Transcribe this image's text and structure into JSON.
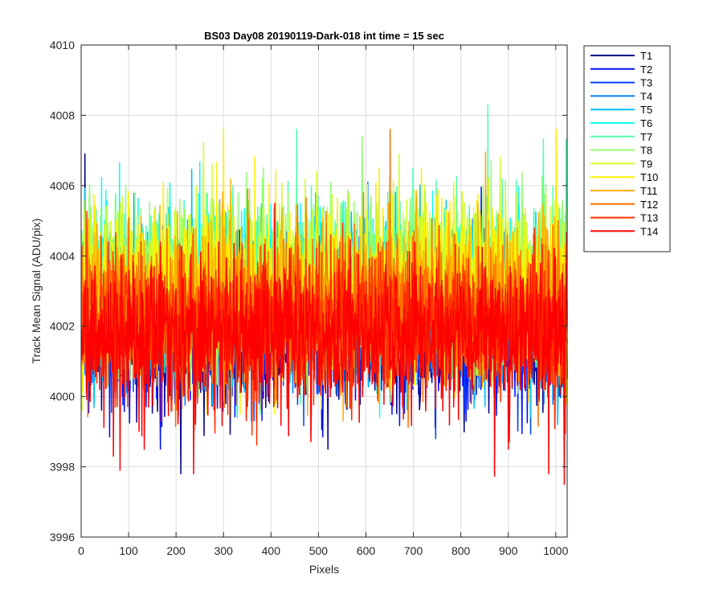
{
  "chart_data": {
    "type": "line",
    "title": "BS03 Day08 20190119-Dark-018 int time = 15 sec",
    "xlabel": "Pixels",
    "ylabel": "Track Mean Signal (ADU/pix)",
    "xlim": [
      0,
      1024
    ],
    "ylim": [
      3996,
      4010
    ],
    "xticks": [
      0,
      100,
      200,
      300,
      400,
      500,
      600,
      700,
      800,
      900,
      1000
    ],
    "yticks": [
      3996,
      3998,
      4000,
      4002,
      4004,
      4006,
      4008,
      4010
    ],
    "grid": true,
    "legend_position": "outside-top-right",
    "pixels_per_track": 1024,
    "noise_seed": 20190119,
    "series": [
      {
        "name": "T1",
        "color": "#00008F",
        "mean": 4001.7,
        "spread": 1.0,
        "min": 3997.8,
        "max": 4007.0
      },
      {
        "name": "T2",
        "color": "#0010FF",
        "mean": 4001.9,
        "spread": 1.0,
        "min": 3998.5,
        "max": 4007.0
      },
      {
        "name": "T3",
        "color": "#0040FF",
        "mean": 4002.1,
        "spread": 1.0,
        "min": 3998.8,
        "max": 4007.0
      },
      {
        "name": "T4",
        "color": "#0080FF",
        "mean": 4002.4,
        "spread": 1.05,
        "min": 3999.0,
        "max": 4007.2
      },
      {
        "name": "T5",
        "color": "#00BFFF",
        "mean": 4002.7,
        "spread": 1.1,
        "min": 3999.2,
        "max": 4007.3
      },
      {
        "name": "T6",
        "color": "#10FFEF",
        "mean": 4003.0,
        "spread": 1.15,
        "min": 3999.4,
        "max": 4007.3
      },
      {
        "name": "T7",
        "color": "#50FFAF",
        "mean": 4003.2,
        "spread": 1.2,
        "min": 3999.5,
        "max": 4008.3
      },
      {
        "name": "T8",
        "color": "#8FFF70",
        "mean": 4003.3,
        "spread": 1.2,
        "min": 3999.6,
        "max": 4007.4
      },
      {
        "name": "T9",
        "color": "#CFFF30",
        "mean": 4003.2,
        "spread": 1.2,
        "min": 3999.6,
        "max": 4007.4
      },
      {
        "name": "T10",
        "color": "#FFEF00",
        "mean": 4003.0,
        "spread": 1.2,
        "min": 3999.5,
        "max": 4007.6
      },
      {
        "name": "T11",
        "color": "#FFAF00",
        "mean": 4002.6,
        "spread": 1.15,
        "min": 3999.3,
        "max": 4007.4
      },
      {
        "name": "T12",
        "color": "#FF7000",
        "mean": 4002.3,
        "spread": 1.1,
        "min": 3999.0,
        "max": 4007.6
      },
      {
        "name": "T13",
        "color": "#FF3000",
        "mean": 4002.0,
        "spread": 1.05,
        "min": 3998.5,
        "max": 4007.0
      },
      {
        "name": "T14",
        "color": "#FF0000",
        "mean": 4001.8,
        "spread": 1.0,
        "min": 3997.5,
        "max": 4006.8
      }
    ],
    "extreme_points": [
      {
        "series": "T1",
        "x": 210,
        "y": 3997.8
      },
      {
        "series": "T14",
        "x": 82,
        "y": 3997.9
      },
      {
        "series": "T14",
        "x": 237,
        "y": 3997.8
      },
      {
        "series": "T14",
        "x": 985,
        "y": 3997.8
      },
      {
        "series": "T14",
        "x": 1018,
        "y": 3997.5
      },
      {
        "series": "T14",
        "x": 68,
        "y": 3998.3
      },
      {
        "series": "T14",
        "x": 133,
        "y": 3998.5
      },
      {
        "series": "T1",
        "x": 520,
        "y": 3998.5
      },
      {
        "series": "T14",
        "x": 900,
        "y": 3998.5
      },
      {
        "series": "T7",
        "x": 857,
        "y": 4008.3
      },
      {
        "series": "T12",
        "x": 651,
        "y": 4007.6
      },
      {
        "series": "T10",
        "x": 300,
        "y": 4007.6
      },
      {
        "series": "T1",
        "x": 8,
        "y": 4006.9
      }
    ]
  }
}
